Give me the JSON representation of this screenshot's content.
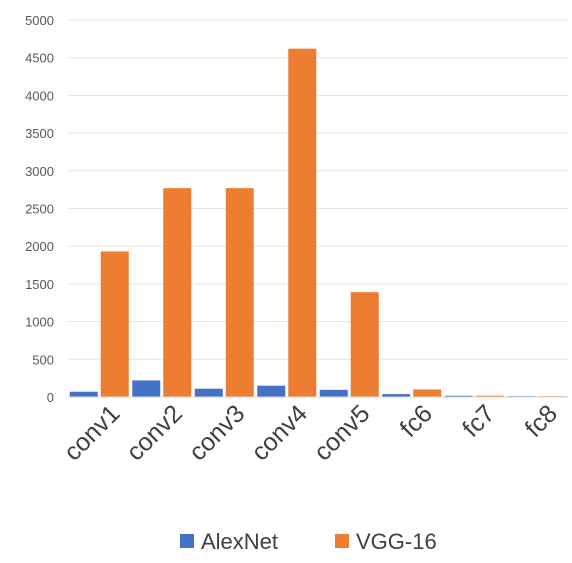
{
  "chart_data": {
    "type": "bar",
    "categories": [
      "conv1",
      "conv2",
      "conv3",
      "conv4",
      "conv5",
      "fc6",
      "fc7",
      "fc8"
    ],
    "series": [
      {
        "name": "AlexNet",
        "color": "#4472c4",
        "values": [
          70,
          220,
          110,
          150,
          95,
          38,
          17,
          4
        ]
      },
      {
        "name": "VGG-16",
        "color": "#ed7d31",
        "values": [
          1930,
          2770,
          2770,
          4620,
          1390,
          100,
          17,
          4
        ]
      }
    ],
    "yticks": [
      "0",
      "500",
      "1000",
      "1500",
      "2000",
      "2500",
      "3000",
      "3500",
      "4000",
      "4500",
      "5000"
    ],
    "ylim": [
      0,
      5000
    ],
    "grid": true,
    "legend_position": "bottom"
  }
}
